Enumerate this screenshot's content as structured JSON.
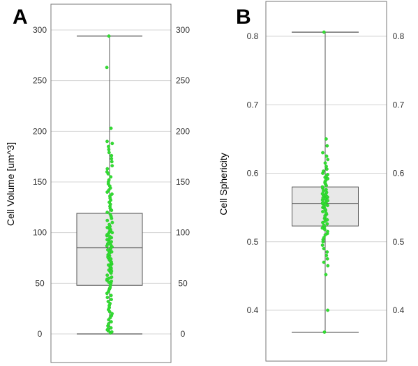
{
  "chart_data": [
    {
      "type": "box",
      "panel_label": "A",
      "ylabel": "Cell Volume [um^3]",
      "ylim": [
        -25,
        325
      ],
      "yticks": [
        0,
        50,
        100,
        150,
        200,
        250,
        300
      ],
      "ytick_labels_left": [
        "0",
        "50",
        "100",
        "150",
        "200",
        "250",
        "300"
      ],
      "ytick_labels_right": [
        "0",
        "50",
        "100",
        "150",
        "200",
        "250",
        "300"
      ],
      "grid": true,
      "box": {
        "whisker_low": 0,
        "q1": 48,
        "median": 85,
        "q3": 119,
        "whisker_high": 294
      },
      "points": [
        1,
        2,
        3,
        4,
        5,
        6,
        8,
        10,
        12,
        14,
        16,
        18,
        20,
        22,
        24,
        26,
        28,
        30,
        32,
        34,
        36,
        38,
        40,
        42,
        44,
        45,
        46,
        48,
        50,
        51,
        52,
        53,
        54,
        55,
        56,
        58,
        60,
        61,
        62,
        63,
        64,
        65,
        66,
        67,
        68,
        69,
        70,
        71,
        72,
        73,
        74,
        75,
        76,
        77,
        78,
        79,
        80,
        81,
        82,
        83,
        84,
        85,
        86,
        87,
        88,
        89,
        90,
        91,
        92,
        93,
        94,
        95,
        96,
        97,
        98,
        99,
        100,
        101,
        102,
        103,
        104,
        105,
        106,
        108,
        110,
        112,
        114,
        116,
        118,
        120,
        122,
        124,
        126,
        128,
        130,
        132,
        134,
        136,
        138,
        140,
        142,
        144,
        146,
        148,
        150,
        152,
        155,
        158,
        160,
        163,
        166,
        170,
        173,
        176,
        179,
        182,
        185,
        188,
        190,
        203,
        263,
        294
      ],
      "point_color": "#33dd33"
    },
    {
      "type": "box",
      "panel_label": "B",
      "ylabel": "Cell Sphericity",
      "ylim": [
        0.35,
        0.85
      ],
      "yticks": [
        0.4,
        0.5,
        0.6,
        0.7,
        0.8
      ],
      "ytick_labels_left": [
        "0.4",
        "0.5",
        "0.6",
        "0.7",
        "0.8"
      ],
      "ytick_labels_right": [
        "0.4",
        "0.5",
        "0.6",
        "0.7",
        "0.8"
      ],
      "grid": true,
      "box": {
        "whisker_low": 0.368,
        "q1": 0.523,
        "median": 0.556,
        "q3": 0.58,
        "whisker_high": 0.806
      },
      "points": [
        0.368,
        0.4,
        0.452,
        0.465,
        0.47,
        0.475,
        0.48,
        0.485,
        0.49,
        0.495,
        0.5,
        0.503,
        0.506,
        0.51,
        0.512,
        0.515,
        0.518,
        0.52,
        0.522,
        0.524,
        0.526,
        0.528,
        0.53,
        0.532,
        0.534,
        0.536,
        0.538,
        0.54,
        0.542,
        0.544,
        0.546,
        0.548,
        0.55,
        0.551,
        0.552,
        0.553,
        0.554,
        0.555,
        0.556,
        0.557,
        0.558,
        0.559,
        0.56,
        0.561,
        0.562,
        0.563,
        0.564,
        0.565,
        0.566,
        0.567,
        0.568,
        0.569,
        0.57,
        0.572,
        0.574,
        0.576,
        0.578,
        0.58,
        0.582,
        0.584,
        0.586,
        0.588,
        0.59,
        0.592,
        0.594,
        0.596,
        0.598,
        0.6,
        0.603,
        0.606,
        0.61,
        0.615,
        0.62,
        0.625,
        0.63,
        0.64,
        0.65,
        0.806
      ],
      "point_color": "#33dd33"
    }
  ]
}
